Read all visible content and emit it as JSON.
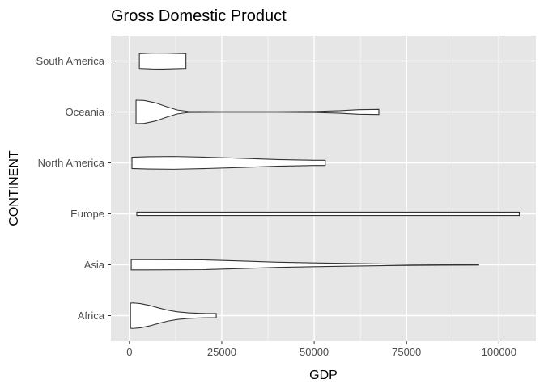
{
  "chart_data": {
    "type": "violin",
    "title": "Gross Domestic Product",
    "xlabel": "GDP",
    "ylabel": "CONTINENT",
    "xlim": [
      -5000,
      110000
    ],
    "x_ticks": [
      0,
      25000,
      50000,
      75000,
      100000
    ],
    "x_tick_labels": [
      "0",
      "25000",
      "50000",
      "75000",
      "100000"
    ],
    "categories": [
      "Africa",
      "Asia",
      "Europe",
      "North America",
      "Oceania",
      "South America"
    ],
    "grid": true,
    "legend": "none",
    "series": [
      {
        "category": "Africa",
        "min": 300,
        "max": 23500,
        "density": [
          [
            300,
            0.98
          ],
          [
            1000,
            1.0
          ],
          [
            3000,
            0.95
          ],
          [
            5500,
            0.8
          ],
          [
            8000,
            0.6
          ],
          [
            10500,
            0.42
          ],
          [
            13000,
            0.3
          ],
          [
            16000,
            0.22
          ],
          [
            19000,
            0.18
          ],
          [
            21500,
            0.16
          ],
          [
            23500,
            0.16
          ]
        ]
      },
      {
        "category": "Asia",
        "min": 500,
        "max": 94500,
        "density": [
          [
            500,
            0.4
          ],
          [
            5000,
            0.4
          ],
          [
            20000,
            0.38
          ],
          [
            30000,
            0.3
          ],
          [
            40000,
            0.2
          ],
          [
            55000,
            0.12
          ],
          [
            70000,
            0.06
          ],
          [
            85000,
            0.025
          ],
          [
            94500,
            0.02
          ]
        ]
      },
      {
        "category": "Europe",
        "min": 2000,
        "max": 105500,
        "density": [
          [
            2000,
            0.13
          ],
          [
            50000,
            0.13
          ],
          [
            105500,
            0.13
          ]
        ]
      },
      {
        "category": "North America",
        "min": 700,
        "max": 53000,
        "density": [
          [
            700,
            0.44
          ],
          [
            5000,
            0.48
          ],
          [
            12000,
            0.5
          ],
          [
            20000,
            0.45
          ],
          [
            30000,
            0.36
          ],
          [
            40000,
            0.26
          ],
          [
            50000,
            0.2
          ],
          [
            53000,
            0.2
          ]
        ]
      },
      {
        "category": "Oceania",
        "min": 1800,
        "max": 67500,
        "density": [
          [
            1800,
            0.92
          ],
          [
            4000,
            0.9
          ],
          [
            7000,
            0.72
          ],
          [
            10000,
            0.42
          ],
          [
            13000,
            0.15
          ],
          [
            16000,
            0.04
          ],
          [
            25000,
            0.02
          ],
          [
            40000,
            0.02
          ],
          [
            50000,
            0.04
          ],
          [
            57000,
            0.1
          ],
          [
            62000,
            0.18
          ],
          [
            67500,
            0.2
          ]
        ]
      },
      {
        "category": "South America",
        "min": 2700,
        "max": 15300,
        "density": [
          [
            2700,
            0.58
          ],
          [
            6000,
            0.62
          ],
          [
            9000,
            0.63
          ],
          [
            12000,
            0.61
          ],
          [
            15300,
            0.58
          ]
        ]
      }
    ]
  }
}
